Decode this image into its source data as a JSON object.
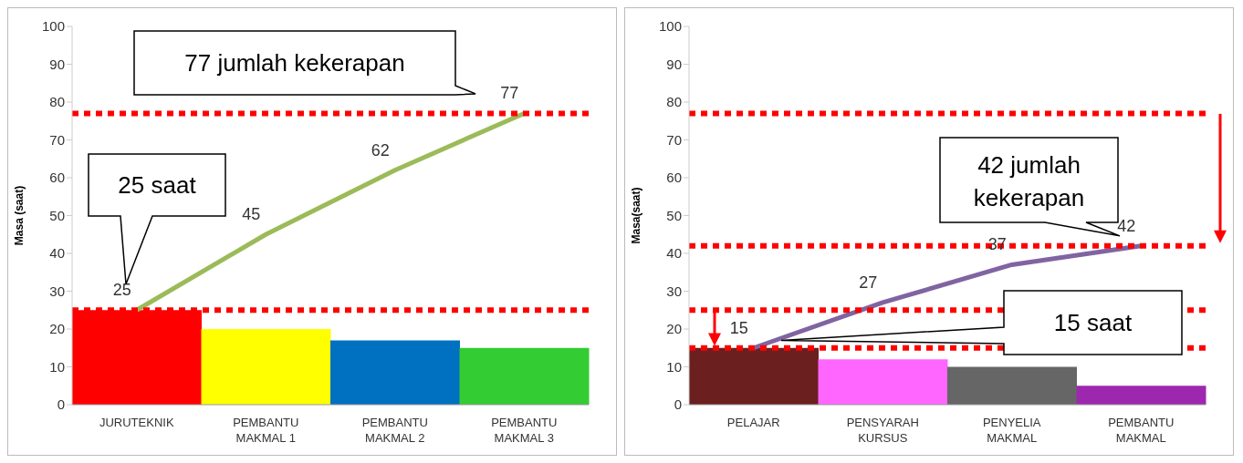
{
  "chart_data": [
    {
      "type": "bar",
      "categories": [
        "JURUTEKNIK",
        "PEMBANTU MAKMAL 1",
        "PEMBANTU MAKMAL 2",
        "PEMBANTU MAKMAL 3"
      ],
      "ylabel": "Masa (saat)",
      "ylim": [
        0,
        100
      ],
      "yticks": [
        0,
        10,
        20,
        30,
        40,
        50,
        60,
        70,
        80,
        90,
        100
      ],
      "series": [
        {
          "colors": [
            "#ff0000",
            "#ffff00",
            "#0070c0",
            "#33cc33"
          ],
          "values": [
            25,
            20,
            17,
            15
          ]
        },
        {
          "type": "line",
          "color": "#9bbb59",
          "marker": "none",
          "data_labels": true,
          "values": [
            25,
            45,
            62,
            77
          ]
        }
      ],
      "ref_lines": [
        {
          "axis": "y",
          "value": 77,
          "color": "#ff0000",
          "line_style": "dotted"
        },
        {
          "axis": "y",
          "value": 25,
          "color": "#ff0000",
          "line_style": "dotted"
        }
      ],
      "annotations": [
        "77 jumlah kekerapan",
        "25 saat"
      ]
    },
    {
      "type": "bar",
      "categories": [
        "PELAJAR",
        "PENSYARAH KURSUS",
        "PENYELIA MAKMAL",
        "PEMBANTU MAKMAL"
      ],
      "ylabel": "Masa(saat)",
      "ylim": [
        0,
        100
      ],
      "yticks": [
        0,
        10,
        20,
        30,
        40,
        50,
        60,
        70,
        80,
        90,
        100
      ],
      "series": [
        {
          "colors": [
            "#6b1f1f",
            "#ff66ff",
            "#666666",
            "#9e27b0"
          ],
          "values": [
            15,
            12,
            10,
            5
          ]
        },
        {
          "type": "line",
          "color": "#8064a2",
          "marker": "none",
          "data_labels": true,
          "values": [
            15,
            27,
            37,
            42
          ]
        }
      ],
      "ref_lines": [
        {
          "axis": "y",
          "value": 77,
          "color": "#ff0000",
          "line_style": "dotted"
        },
        {
          "axis": "y",
          "value": 42,
          "color": "#ff0000",
          "line_style": "dotted"
        },
        {
          "axis": "y",
          "value": 25,
          "color": "#ff0000",
          "line_style": "dotted"
        },
        {
          "axis": "y",
          "value": 15,
          "color": "#ff0000",
          "line_style": "dotted"
        }
      ],
      "annotations": [
        "42 jumlah kekerapan",
        "15 saat"
      ]
    }
  ]
}
